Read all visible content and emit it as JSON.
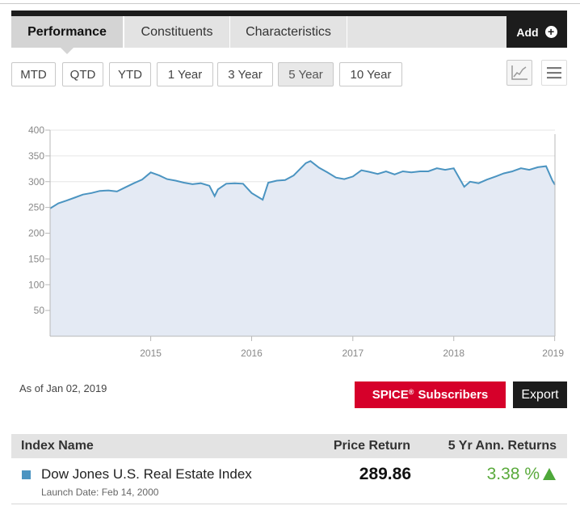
{
  "tabs": {
    "performance": "Performance",
    "constituents": "Constituents",
    "characteristics": "Characteristics",
    "add_label": "Add"
  },
  "periods": [
    "MTD",
    "QTD",
    "YTD",
    "1 Year",
    "3 Year",
    "5 Year",
    "10 Year"
  ],
  "selected_period": "5 Year",
  "chart_data": {
    "type": "area",
    "y_ticks": [
      "400",
      "350",
      "300",
      "250",
      "200",
      "150",
      "100",
      "50"
    ],
    "x_ticks": [
      "2015",
      "2016",
      "2017",
      "2018",
      "2019"
    ],
    "ylim": [
      0,
      400
    ],
    "grid": true,
    "series": [
      {
        "color": "#4b94c1",
        "fill": "#e4eaf4",
        "x": [
          "2014-01-02",
          "2014-02-01",
          "2014-03-01",
          "2014-04-01",
          "2014-05-01",
          "2014-06-01",
          "2014-07-01",
          "2014-08-01",
          "2014-09-01",
          "2014-10-01",
          "2014-11-01",
          "2014-12-01",
          "2015-01-01",
          "2015-02-01",
          "2015-03-01",
          "2015-04-01",
          "2015-05-01",
          "2015-06-01",
          "2015-07-01",
          "2015-08-01",
          "2015-08-20",
          "2015-09-01",
          "2015-10-01",
          "2015-11-01",
          "2015-12-01",
          "2016-01-01",
          "2016-02-10",
          "2016-03-01",
          "2016-04-01",
          "2016-05-01",
          "2016-06-01",
          "2016-07-15",
          "2016-08-01",
          "2016-09-01",
          "2016-10-01",
          "2016-11-01",
          "2016-12-01",
          "2017-01-01",
          "2017-02-01",
          "2017-03-01",
          "2017-04-01",
          "2017-05-01",
          "2017-06-01",
          "2017-07-01",
          "2017-08-01",
          "2017-09-01",
          "2017-10-01",
          "2017-11-01",
          "2017-12-01",
          "2018-01-01",
          "2018-02-08",
          "2018-03-01",
          "2018-04-01",
          "2018-05-01",
          "2018-06-01",
          "2018-07-01",
          "2018-08-01",
          "2018-09-01",
          "2018-10-01",
          "2018-11-01",
          "2018-12-01",
          "2018-12-24",
          "2019-01-02"
        ],
        "values": [
          248,
          258,
          263,
          269,
          275,
          278,
          282,
          283,
          281,
          289,
          297,
          304,
          318,
          312,
          305,
          302,
          298,
          295,
          297,
          292,
          272,
          285,
          296,
          297,
          296,
          278,
          265,
          298,
          302,
          303,
          312,
          336,
          340,
          327,
          318,
          308,
          305,
          310,
          322,
          319,
          315,
          320,
          314,
          320,
          318,
          320,
          320,
          326,
          323,
          326,
          290,
          300,
          297,
          304,
          310,
          316,
          320,
          326,
          323,
          328,
          330,
          302,
          294
        ]
      }
    ]
  },
  "as_of": "As of Jan 02, 2019",
  "spice_label": "Subscribers",
  "spice_brand": "SPICE",
  "spice_mark": "®",
  "export_label": "Export",
  "table": {
    "headers": {
      "name": "Index Name",
      "price": "Price Return",
      "ret": "5 Yr Ann. Returns"
    },
    "row": {
      "name": "Dow Jones U.S. Real Estate Index",
      "launch": "Launch Date: Feb 14, 2000",
      "price": "289.86",
      "ret": "3.38 %",
      "swatch_color": "#4b94c1"
    }
  }
}
